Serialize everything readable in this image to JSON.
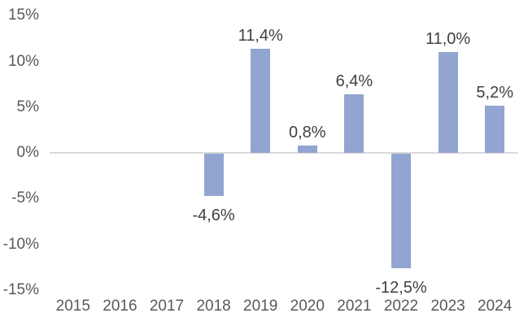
{
  "chart_data": {
    "type": "bar",
    "title": "",
    "xlabel": "",
    "ylabel": "",
    "categories": [
      "2015",
      "2016",
      "2017",
      "2018",
      "2019",
      "2020",
      "2021",
      "2022",
      "2023",
      "2024"
    ],
    "values": [
      null,
      null,
      null,
      -4.6,
      11.4,
      0.8,
      6.4,
      -12.5,
      11.0,
      5.2
    ],
    "data_labels": [
      "",
      "",
      "",
      "-4,6%",
      "11,4%",
      "0,8%",
      "6,4%",
      "-12,5%",
      "11,0%",
      "5,2%"
    ],
    "ylim": [
      -15,
      15
    ],
    "ytick_step": 5,
    "yticks": [
      {
        "value": 15,
        "label": "15%"
      },
      {
        "value": 10,
        "label": "10%"
      },
      {
        "value": 5,
        "label": "5%"
      },
      {
        "value": 0,
        "label": "0%"
      },
      {
        "value": -5,
        "label": "-5%"
      },
      {
        "value": -10,
        "label": "-10%"
      },
      {
        "value": -15,
        "label": "-15%"
      }
    ],
    "grid": false,
    "legend": "none",
    "decimal_separator": ",",
    "colors": {
      "bar": "#92A5D0",
      "zero_axis_line": "#D9D9D9",
      "tick_label": "#595959",
      "data_label": "#404040",
      "background": "#FFFFFF"
    }
  }
}
